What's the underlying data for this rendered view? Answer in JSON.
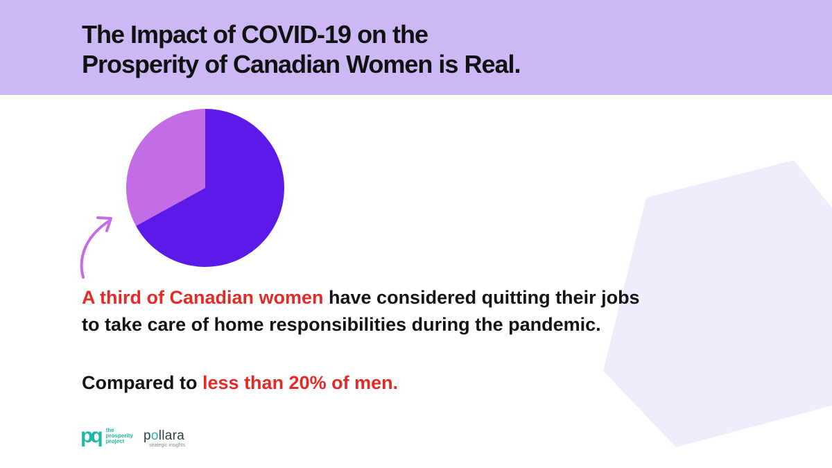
{
  "header": {
    "title_line1": "The Impact of COVID-19 on the",
    "title_line2": "Prosperity of Canadian Women is Real."
  },
  "colors": {
    "header_bg": "#cbb8f5",
    "accent_red": "#e32a26",
    "pie_major": "#5c1ae9",
    "pie_minor": "#c46ce6",
    "hexagon": "#f1ecfd",
    "logo_teal": "#1fb7a7"
  },
  "chart_data": {
    "type": "pie",
    "title": "",
    "slices": [
      {
        "name": "",
        "value": 0.67,
        "color": "#5c1ae9"
      },
      {
        "name": "",
        "value": 0.33,
        "color": "#c46ce6"
      }
    ]
  },
  "statement": {
    "highlight": "A third of Canadian women",
    "rest_line1": " have considered quitting their jobs",
    "line2": "to take care of home responsibilities during the pandemic."
  },
  "comparison": {
    "prefix": "Compared to ",
    "highlight": "less than 20% of men."
  },
  "logos": {
    "prosperity_mark": "pq",
    "prosperity_line1": "the",
    "prosperity_line2": "prosperity",
    "prosperity_line3": "project",
    "pollara_part1": "p",
    "pollara_dot": "o",
    "pollara_part2": "llara",
    "pollara_tagline": "strategic insights"
  }
}
